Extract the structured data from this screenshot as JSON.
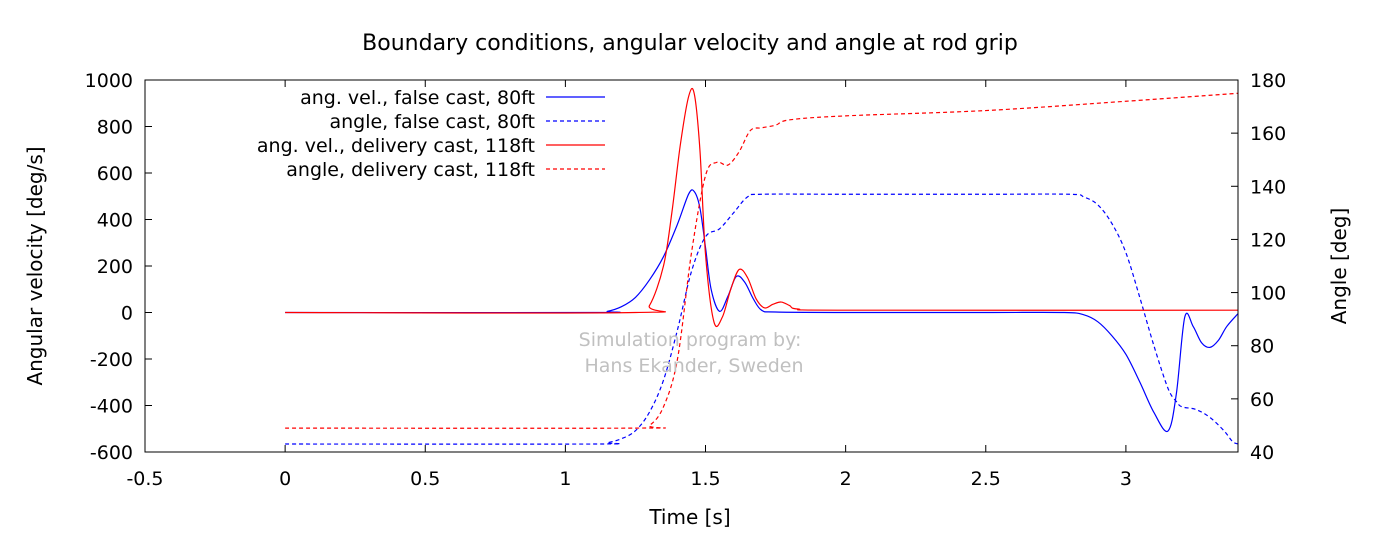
{
  "chart_data": {
    "type": "line",
    "title": "Boundary conditions, angular velocity and angle at rod grip",
    "xlabel": "Time [s]",
    "ylabel": "Angular velocity [deg/s]",
    "y2label": "Angle [deg]",
    "xlim": [
      -0.5,
      3.4
    ],
    "ylim": [
      -600,
      1000
    ],
    "y2lim": [
      40,
      180
    ],
    "xticks": [
      -0.5,
      0,
      0.5,
      1,
      1.5,
      2,
      2.5,
      3
    ],
    "xtick_labels": [
      "-0.5",
      "0",
      "0.5",
      "1",
      "1.5",
      "2",
      "2.5",
      "3"
    ],
    "yticks": [
      -600,
      -400,
      -200,
      0,
      200,
      400,
      600,
      800,
      1000
    ],
    "ytick_labels": [
      "-600",
      "-400",
      "-200",
      "0",
      "200",
      "400",
      "600",
      "800",
      "1000"
    ],
    "y2ticks": [
      40,
      60,
      80,
      100,
      120,
      140,
      160,
      180
    ],
    "y2tick_labels": [
      "40",
      "60",
      "80",
      "100",
      "120",
      "140",
      "160",
      "180"
    ],
    "grid": false,
    "legend_position": "top-left",
    "annotation_lines": [
      "Simulation program by:",
      "Hans Ekander, Sweden"
    ],
    "colors": {
      "blue": "#0000ff",
      "red": "#ff0000",
      "watermark": "#c0c0c0",
      "frame": "#000000"
    },
    "series": [
      {
        "name": "ang. vel., false cast, 80ft",
        "axis": "y1",
        "color": "#0000ff",
        "dash": "solid",
        "x": [
          0,
          1.1,
          1.15,
          1.2,
          1.25,
          1.3,
          1.35,
          1.4,
          1.44,
          1.46,
          1.48,
          1.5,
          1.52,
          1.55,
          1.58,
          1.61,
          1.64,
          1.67,
          1.7,
          1.75,
          2.0,
          2.5,
          2.78,
          2.85,
          2.9,
          2.95,
          3.0,
          3.05,
          3.1,
          3.15,
          3.18,
          3.21,
          3.24,
          3.27,
          3.3,
          3.33,
          3.36,
          3.4
        ],
        "y": [
          0,
          0,
          5,
          25,
          65,
          140,
          240,
          380,
          510,
          520,
          450,
          280,
          100,
          5,
          70,
          155,
          130,
          60,
          10,
          2,
          0,
          0,
          0,
          -10,
          -40,
          -100,
          -180,
          -300,
          -430,
          -510,
          -350,
          -20,
          -60,
          -130,
          -150,
          -120,
          -60,
          -5
        ]
      },
      {
        "name": "angle, false cast, 80ft",
        "axis": "y2",
        "color": "#0000ff",
        "dash": "dashed",
        "x": [
          0,
          1.1,
          1.15,
          1.2,
          1.25,
          1.3,
          1.35,
          1.4,
          1.45,
          1.5,
          1.55,
          1.6,
          1.65,
          1.7,
          2.0,
          2.5,
          2.8,
          2.85,
          2.9,
          2.95,
          3.0,
          3.05,
          3.1,
          3.15,
          3.18,
          3.2,
          3.25,
          3.3,
          3.35,
          3.38,
          3.4
        ],
        "y": [
          43,
          43,
          43.5,
          45,
          48,
          55,
          67,
          86,
          108,
          121,
          124,
          130,
          136,
          137,
          137,
          137,
          137,
          136,
          133,
          126,
          115,
          98,
          80,
          64,
          59,
          57,
          56,
          53,
          48,
          44,
          43
        ]
      },
      {
        "name": "ang. vel., delivery cast, 118ft",
        "axis": "y1",
        "color": "#ff0000",
        "dash": "solid",
        "x": [
          0,
          1.25,
          1.3,
          1.35,
          1.38,
          1.41,
          1.44,
          1.46,
          1.48,
          1.5,
          1.53,
          1.56,
          1.59,
          1.62,
          1.65,
          1.68,
          1.71,
          1.74,
          1.77,
          1.8,
          1.83,
          2.0,
          3.4
        ],
        "y": [
          0,
          0,
          30,
          200,
          430,
          720,
          930,
          940,
          700,
          250,
          -40,
          -20,
          100,
          185,
          150,
          60,
          20,
          35,
          45,
          30,
          15,
          10,
          10
        ]
      },
      {
        "name": "angle, delivery cast, 118ft",
        "axis": "y2",
        "color": "#ff0000",
        "dash": "dashed",
        "x": [
          0,
          1.25,
          1.3,
          1.35,
          1.4,
          1.45,
          1.5,
          1.54,
          1.58,
          1.62,
          1.66,
          1.7,
          1.75,
          1.8,
          2.0,
          2.5,
          3.0,
          3.4
        ],
        "y": [
          49,
          49,
          50,
          57,
          75,
          115,
          144,
          149,
          148,
          153,
          161,
          162,
          163,
          165,
          166.5,
          168.5,
          172,
          175
        ]
      }
    ]
  }
}
